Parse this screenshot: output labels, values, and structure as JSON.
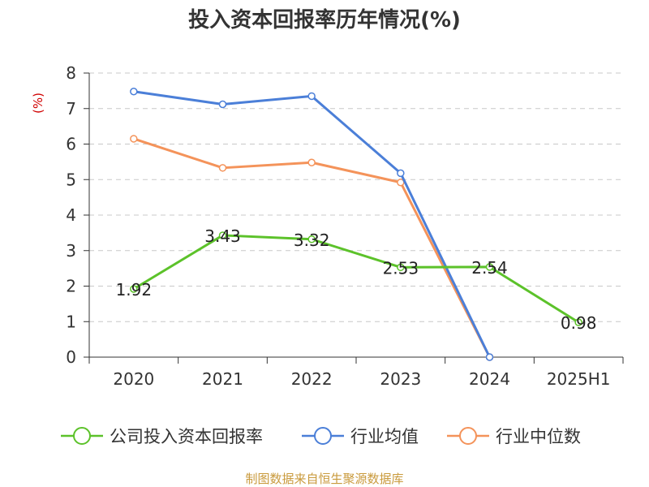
{
  "chart_data": {
    "type": "line",
    "title": "投入资本回报率历年情况(%)",
    "ylabel": "(%)",
    "xlabel": "",
    "categories": [
      "2020",
      "2021",
      "2022",
      "2023",
      "2024",
      "2025H1"
    ],
    "ylim": [
      0,
      8
    ],
    "yticks": [
      0,
      1,
      2,
      3,
      4,
      5,
      6,
      7,
      8
    ],
    "grid": true,
    "legend_position": "bottom",
    "series": [
      {
        "name": "公司投入资本回报率",
        "color": "#5cc22a",
        "values": [
          1.92,
          3.43,
          3.32,
          2.53,
          2.54,
          0.98
        ],
        "data_labels": [
          "1.92",
          "3.43",
          "3.32",
          "2.53",
          "2.54",
          "0.98"
        ]
      },
      {
        "name": "行业均值",
        "color": "#4b7fd8",
        "values": [
          7.48,
          7.12,
          7.35,
          5.18,
          0.0,
          null
        ]
      },
      {
        "name": "行业中位数",
        "color": "#f4935a",
        "values": [
          6.15,
          5.33,
          5.48,
          4.92,
          0.0,
          null
        ]
      }
    ]
  },
  "source_note": "制图数据来自恒生聚源数据库"
}
